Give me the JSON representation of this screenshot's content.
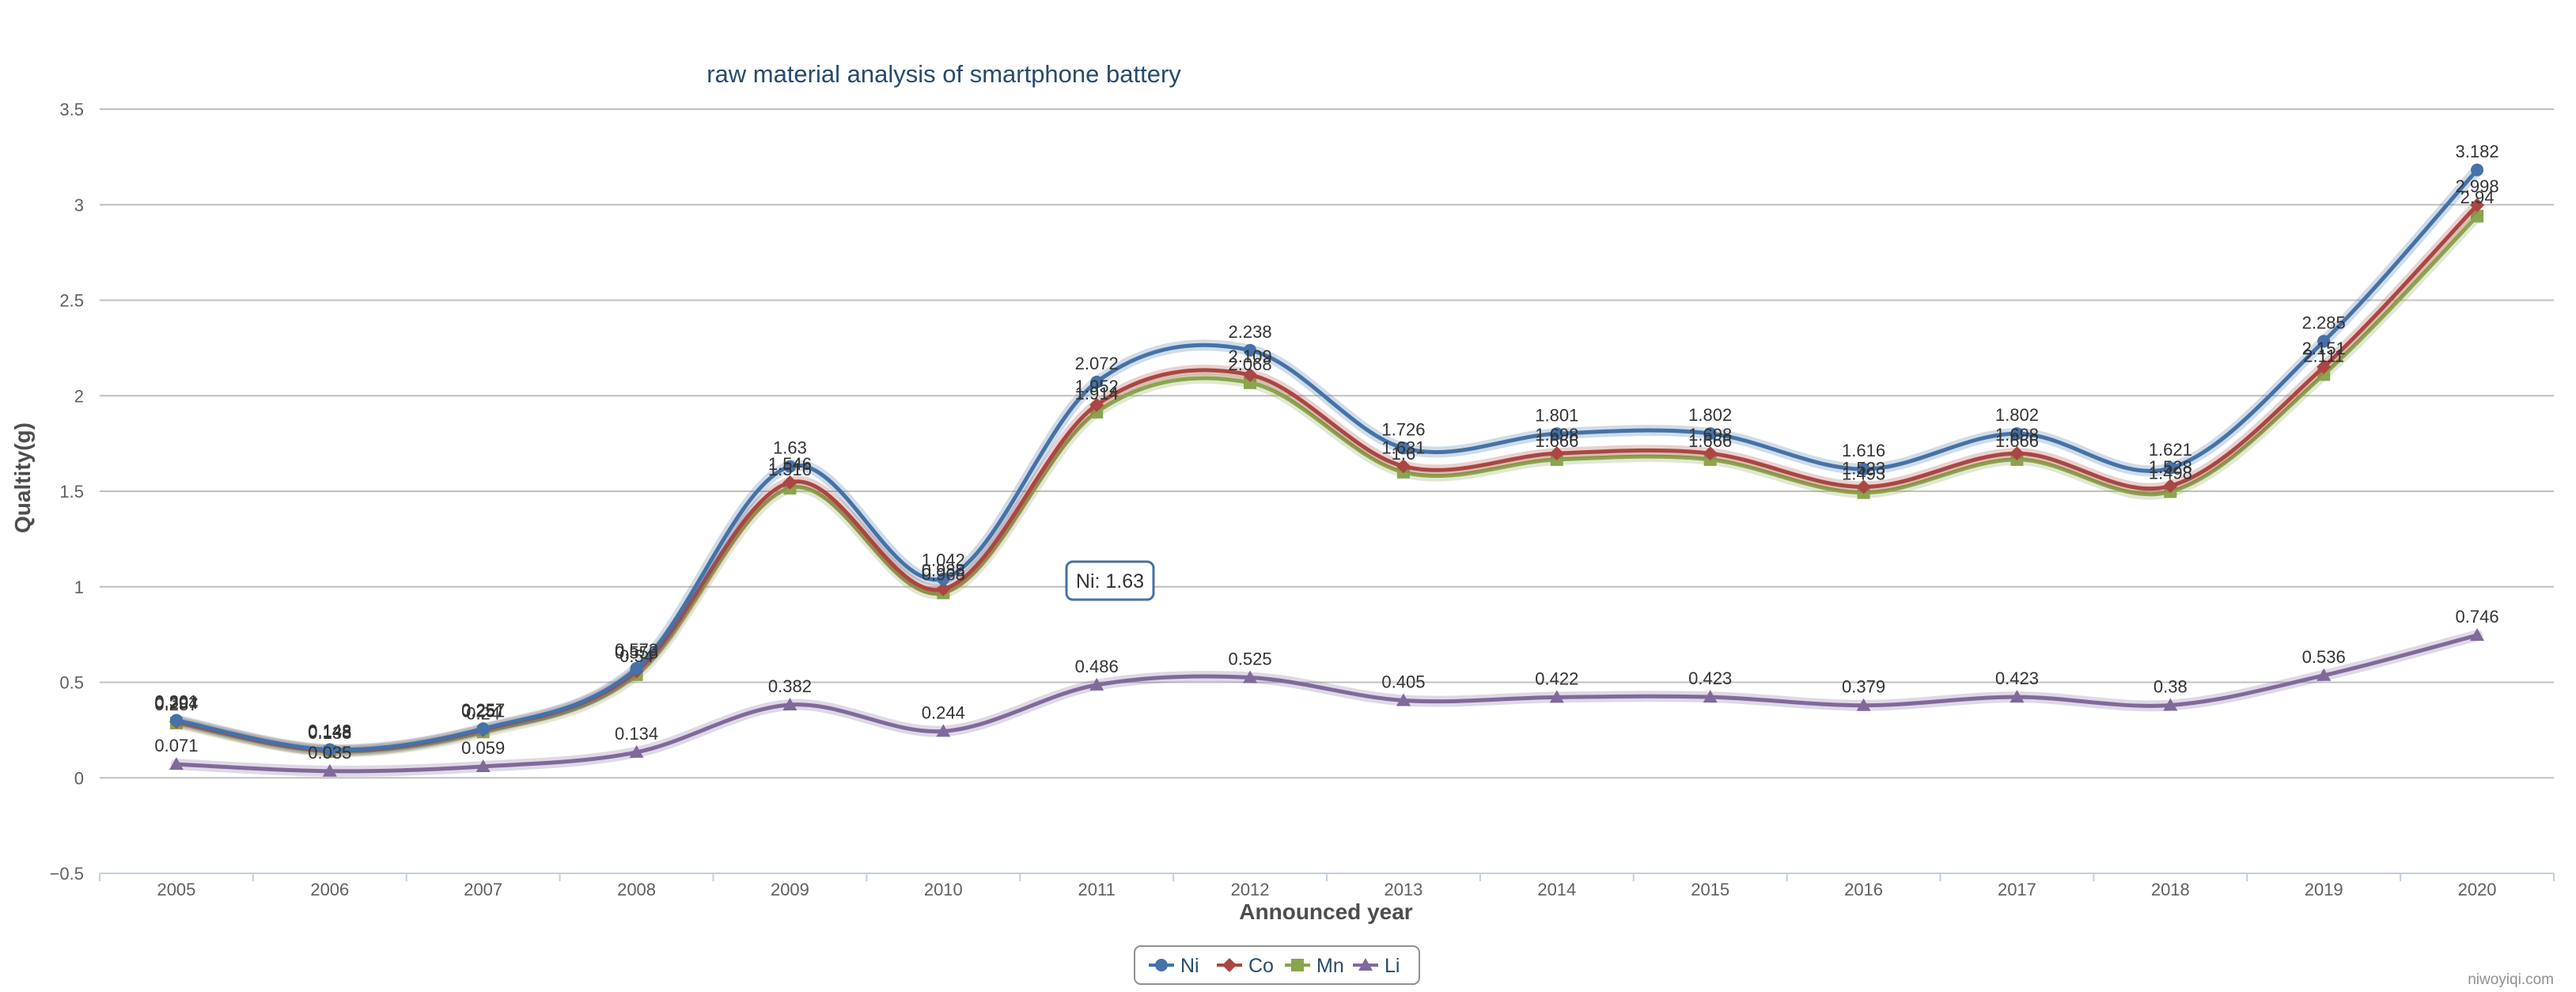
{
  "chart_data": {
    "type": "line",
    "title": "raw material analysis of smartphone battery",
    "xlabel": "Announced year",
    "ylabel": "Qualtity(g)",
    "categories": [
      "2005",
      "2006",
      "2007",
      "2008",
      "2009",
      "2010",
      "2011",
      "2012",
      "2013",
      "2014",
      "2015",
      "2016",
      "2017",
      "2018",
      "2019",
      "2020"
    ],
    "ylim": [
      -0.5,
      3.5
    ],
    "yticks": [
      "−0.5",
      "0",
      "0.5",
      "1",
      "1.5",
      "2",
      "2.5",
      "3",
      "3.5"
    ],
    "grid": true,
    "legend_position": "bottom-center",
    "series": [
      {
        "name": "Ni",
        "color": "#4572a7",
        "marker": "circle",
        "values": [
          0.301,
          0.148,
          0.257,
          0.573,
          1.63,
          1.042,
          2.072,
          2.238,
          1.726,
          1.801,
          1.802,
          1.616,
          1.802,
          1.621,
          2.285,
          3.182
        ]
      },
      {
        "name": "Co",
        "color": "#aa4643",
        "marker": "diamond",
        "values": [
          0.294,
          0.143,
          0.251,
          0.558,
          1.546,
          0.988,
          1.952,
          2.109,
          1.631,
          1.698,
          1.698,
          1.523,
          1.698,
          1.528,
          2.151,
          2.998
        ]
      },
      {
        "name": "Mn",
        "color": "#89a54e",
        "marker": "square",
        "values": [
          0.287,
          0.138,
          0.24,
          0.54,
          1.516,
          0.968,
          1.914,
          2.068,
          1.6,
          1.666,
          1.666,
          1.493,
          1.666,
          1.498,
          2.111,
          2.94
        ]
      },
      {
        "name": "Li",
        "color": "#80699b",
        "marker": "triangle",
        "values": [
          0.071,
          0.035,
          0.059,
          0.134,
          0.382,
          0.244,
          0.486,
          0.525,
          0.405,
          0.422,
          0.423,
          0.379,
          0.423,
          0.38,
          0.536,
          0.746
        ]
      }
    ],
    "data_labels": {
      "Ni": [
        "0.301",
        "0.148",
        "0.257",
        "0.573",
        "1.63",
        "1.042",
        "2.072",
        "2.238",
        "1.726",
        "1.801",
        "1.802",
        "1.616",
        "1.802",
        "1.621",
        "2.285",
        "3.182"
      ],
      "Co": [
        "0.294",
        "0.143",
        "0.251",
        "0.558",
        "1.546",
        "0.988",
        "1.952",
        "2.109",
        "1.631",
        "1.698",
        "1.698",
        "1.523",
        "1.698",
        "1.528",
        "2.151",
        "2.998"
      ],
      "Mn": [
        "0.287",
        "0.138",
        "0.24",
        "0.54",
        "1.516",
        "0.968",
        "1.914",
        "2.068",
        "1.6",
        "1.666",
        "1.666",
        "1.493",
        "1.666",
        "1.498",
        "2.111",
        "2.94"
      ],
      "Li": [
        "0.071",
        "0.035",
        "0.059",
        "0.134",
        "0.382",
        "0.244",
        "0.486",
        "0.525",
        "0.405",
        "0.422",
        "0.423",
        "0.379",
        "0.423",
        "0.38",
        "0.536",
        "0.746"
      ]
    },
    "tooltip": {
      "text": "Ni: 1.63",
      "series": "Ni",
      "category": "2009"
    }
  },
  "credit": "niwoyiqi.com"
}
